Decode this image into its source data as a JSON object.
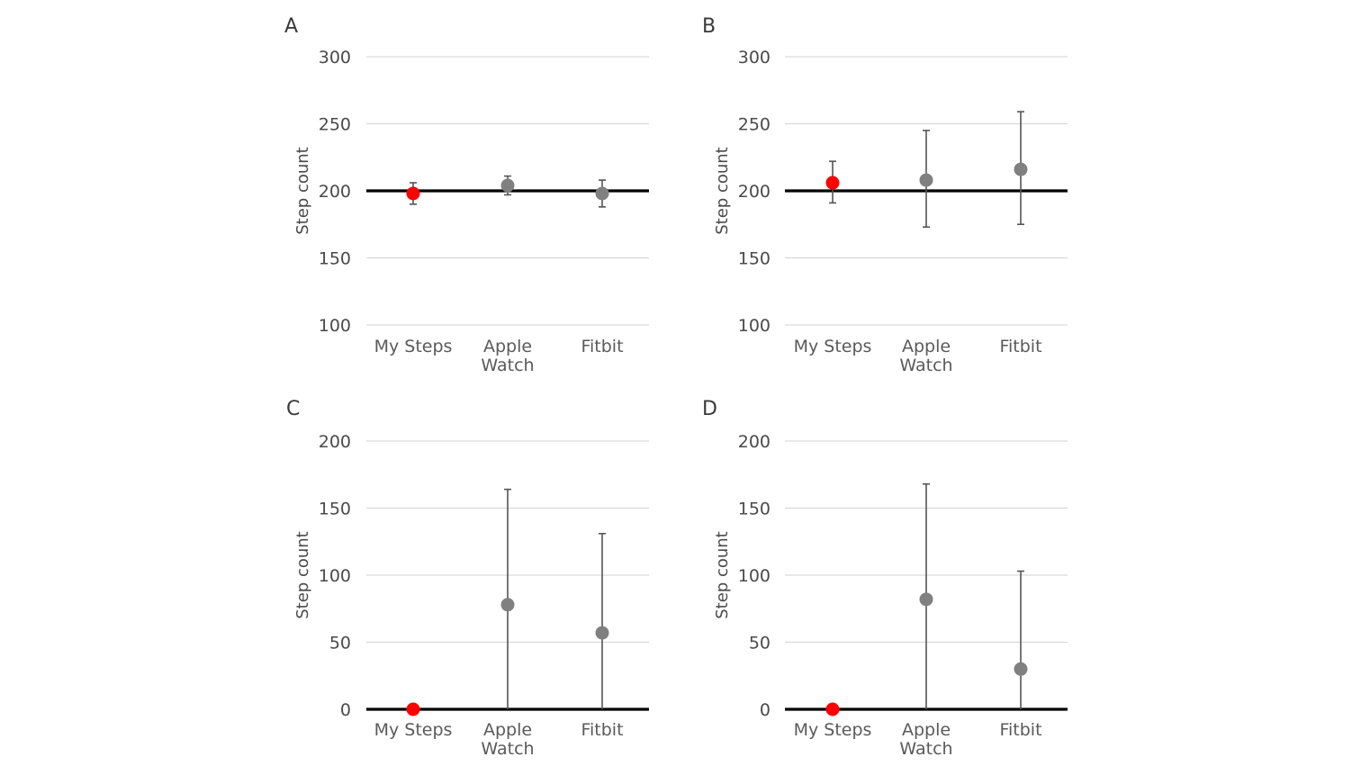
{
  "chart_data": [
    {
      "type": "scatter",
      "panel_label": "A",
      "ylabel": "Step count",
      "ylim": [
        100,
        300
      ],
      "yticks": [
        "100",
        "150",
        "200",
        "250",
        "300"
      ],
      "reference_value": 200,
      "categories": [
        [
          "My Steps"
        ],
        [
          "Apple",
          "Watch"
        ],
        [
          "Fitbit"
        ]
      ],
      "points": [
        {
          "y": 198,
          "low": 190,
          "high": 206,
          "color": "#ff0000"
        },
        {
          "y": 204,
          "low": 197,
          "high": 211,
          "color": "#808080"
        },
        {
          "y": 198,
          "low": 188,
          "high": 208,
          "color": "#808080"
        }
      ],
      "grid": true
    },
    {
      "type": "scatter",
      "panel_label": "B",
      "ylabel": "Step count",
      "ylim": [
        100,
        300
      ],
      "yticks": [
        "100",
        "150",
        "200",
        "250",
        "300"
      ],
      "reference_value": 200,
      "categories": [
        [
          "My Steps"
        ],
        [
          "Apple",
          "Watch"
        ],
        [
          "Fitbit"
        ]
      ],
      "points": [
        {
          "y": 206,
          "low": 191,
          "high": 222,
          "color": "#ff0000"
        },
        {
          "y": 208,
          "low": 173,
          "high": 245,
          "color": "#808080"
        },
        {
          "y": 216,
          "low": 175,
          "high": 259,
          "color": "#808080"
        }
      ],
      "grid": true
    },
    {
      "type": "scatter",
      "panel_label": "C",
      "ylabel": "Step count",
      "ylim": [
        0,
        200
      ],
      "yticks": [
        "0",
        "50",
        "100",
        "150",
        "200"
      ],
      "reference_value": 0,
      "categories": [
        [
          "My Steps"
        ],
        [
          "Apple",
          "Watch"
        ],
        [
          "Fitbit"
        ]
      ],
      "points": [
        {
          "y": 0,
          "low": null,
          "high": null,
          "color": "#ff0000"
        },
        {
          "y": 78,
          "low": 0,
          "high": 164,
          "color": "#808080"
        },
        {
          "y": 57,
          "low": 0,
          "high": 131,
          "color": "#808080"
        }
      ],
      "grid": true
    },
    {
      "type": "scatter",
      "panel_label": "D",
      "ylabel": "Step count",
      "ylim": [
        0,
        200
      ],
      "yticks": [
        "0",
        "50",
        "100",
        "150",
        "200"
      ],
      "reference_value": 0,
      "categories": [
        [
          "My Steps"
        ],
        [
          "Apple",
          "Watch"
        ],
        [
          "Fitbit"
        ]
      ],
      "points": [
        {
          "y": 0,
          "low": null,
          "high": null,
          "color": "#ff0000"
        },
        {
          "y": 82,
          "low": 0,
          "high": 168,
          "color": "#808080"
        },
        {
          "y": 30,
          "low": 0,
          "high": 103,
          "color": "#808080"
        }
      ],
      "grid": true
    }
  ]
}
